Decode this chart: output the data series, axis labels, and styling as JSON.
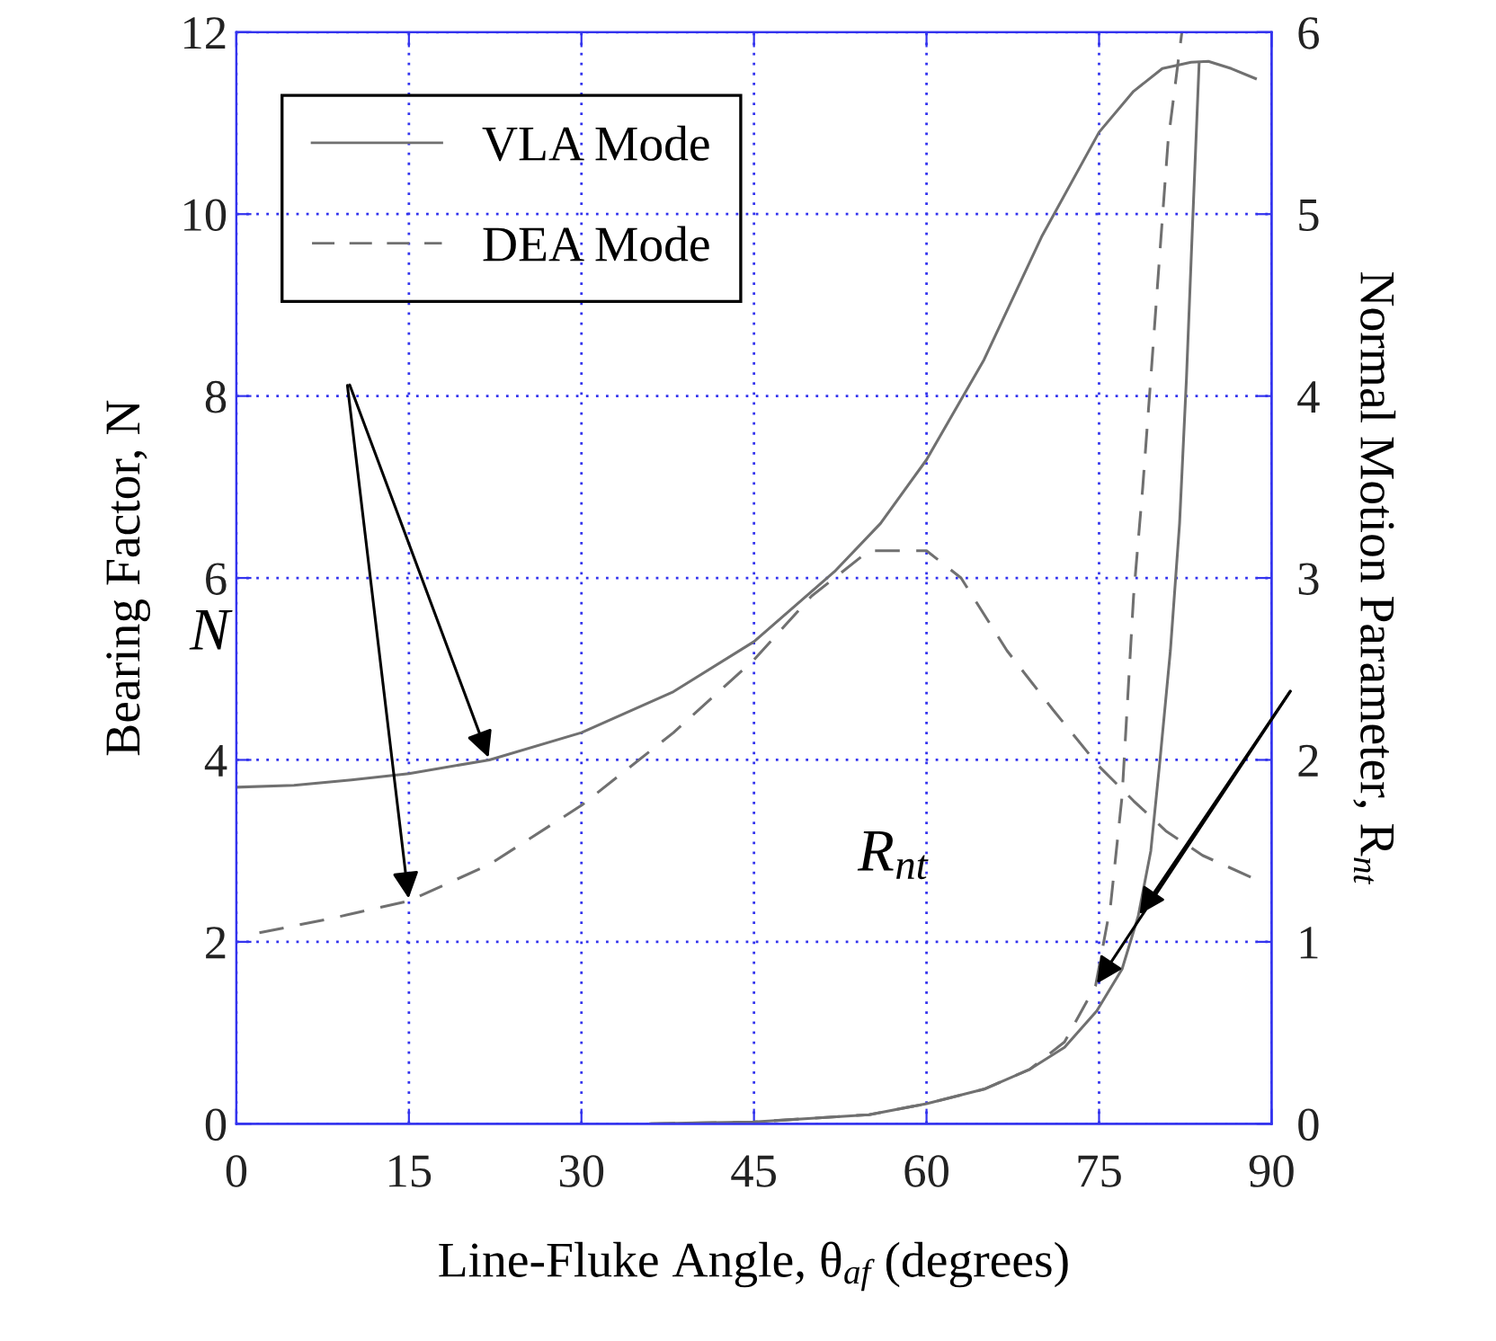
{
  "chart_data": {
    "type": "line",
    "xlabel": "Line-Fluke Angle, θ$_{af}$ (degrees)",
    "ylabel": "Bearing Factor, N",
    "y2label": "Normal Motion Parameter, R$_{nt}$",
    "xlim": [
      0,
      90
    ],
    "xticks": [
      0,
      15,
      30,
      45,
      60,
      75,
      90
    ],
    "ylim": [
      0,
      12
    ],
    "yticks": [
      0,
      2,
      4,
      6,
      8,
      10,
      12
    ],
    "y2lim": [
      0,
      6
    ],
    "y2ticks": [
      0,
      1,
      2,
      3,
      4,
      5,
      6
    ],
    "grid": true,
    "legend": "top left",
    "series": [
      {
        "name": "VLA Mode",
        "color": "#707070",
        "line_style": "solid",
        "x": [
          0,
          5,
          10,
          15,
          22,
          30,
          38,
          45,
          52,
          56,
          60,
          65,
          70,
          75,
          78,
          80.5,
          83,
          84.5,
          86.5,
          88.6
        ],
        "values": [
          3.7,
          3.72,
          3.78,
          3.85,
          4.0,
          4.3,
          4.75,
          5.3,
          6.07,
          6.6,
          7.3,
          8.4,
          9.75,
          10.9,
          11.35,
          11.6,
          11.67,
          11.68,
          11.6,
          11.49
        ]
      },
      {
        "name": "DEA Mode",
        "color": "#707070",
        "line_style": "dashed",
        "x": [
          2,
          8,
          15,
          22,
          30,
          38,
          45,
          50,
          55,
          60,
          63,
          67,
          71,
          75,
          78,
          80.8,
          84,
          88.4
        ],
        "values": [
          2.1,
          2.25,
          2.45,
          2.85,
          3.5,
          4.3,
          5.1,
          5.8,
          6.3,
          6.3,
          6.0,
          5.2,
          4.55,
          3.93,
          3.55,
          3.22,
          2.95,
          2.7
        ]
      },
      {
        "color": "#707070",
        "line_style": "solid",
        "axis": "y2",
        "x": [
          36,
          45,
          55,
          60,
          65,
          69,
          72,
          74.8,
          77,
          78.4,
          79.5,
          80.3,
          81.2,
          82,
          82.6,
          83.1,
          83.7
        ],
        "values": [
          0,
          0.01,
          0.05,
          0.11,
          0.19,
          0.3,
          0.42,
          0.62,
          0.85,
          1.14,
          1.5,
          2.0,
          2.6,
          3.3,
          4.1,
          4.9,
          5.83
        ]
      },
      {
        "color": "#707070",
        "line_style": "dashed",
        "axis": "y2",
        "x": [
          36,
          45,
          55,
          60,
          65,
          69,
          72,
          74.7,
          76,
          77,
          78,
          78.8,
          79.5,
          80.3,
          81,
          82.2
        ],
        "values": [
          0,
          0.01,
          0.05,
          0.11,
          0.19,
          0.3,
          0.45,
          0.76,
          1.2,
          1.8,
          2.9,
          3.5,
          4.1,
          4.8,
          5.4,
          6.0
        ]
      }
    ],
    "annotations": [
      "N",
      "R$_{nt}$"
    ]
  }
}
